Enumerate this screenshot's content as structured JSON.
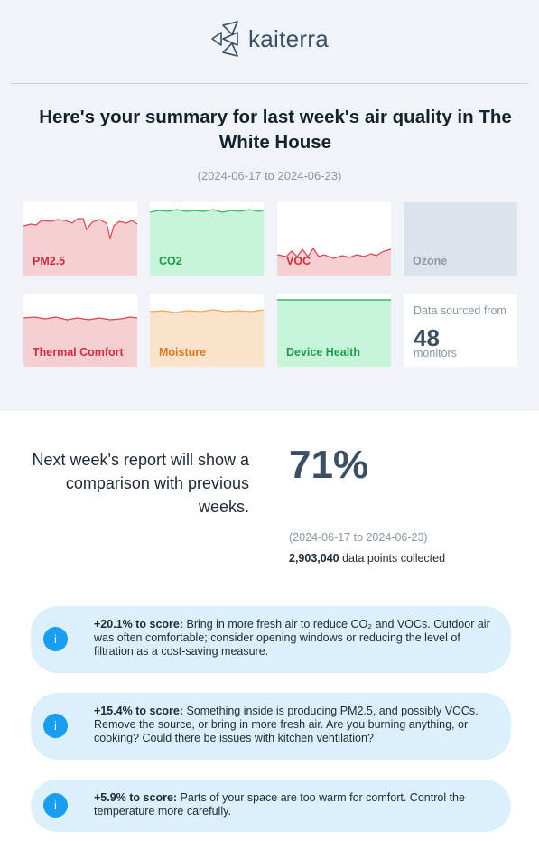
{
  "brand": {
    "name": "kaiterra"
  },
  "header": {
    "title": "Here's your summary for last week's air quality in The White House",
    "date_range": "(2024-06-17 to 2024-06-23)"
  },
  "tiles": [
    {
      "label": "PM2.5",
      "theme": "red",
      "line_color": "#d9434f"
    },
    {
      "label": "CO2",
      "theme": "green",
      "line_color": "#34b865"
    },
    {
      "label": "VOC",
      "theme": "red",
      "line_color": "#d9434f"
    },
    {
      "label": "Ozone",
      "theme": "gray",
      "line_color": ""
    },
    {
      "label": "Thermal Comfort",
      "theme": "red",
      "line_color": "#d9434f"
    },
    {
      "label": "Moisture",
      "theme": "orange",
      "line_color": "#f0a654"
    },
    {
      "label": "Device Health",
      "theme": "green",
      "line_color": "#34b865"
    }
  ],
  "source": {
    "caption": "Data sourced from",
    "count": "48",
    "unit": "monitors"
  },
  "comparison": {
    "message": "Next week's report will show a comparison with previous weeks.",
    "score": "71%",
    "date_range": "(2024-06-17 to 2024-06-23)",
    "data_points": "2,903,040",
    "data_points_suffix": " data points collected"
  },
  "tips": [
    {
      "icon": "info-icon",
      "impact": "+20.1% to score:",
      "text": " Bring in more fresh air to reduce CO₂ and VOCs. Outdoor air was often comfortable; consider opening windows or reducing the level of filtration as a cost-saving measure."
    },
    {
      "icon": "info-icon",
      "impact": "+15.4% to score:",
      "text": " Something inside is producing PM2.5, and possibly VOCs. Remove the source, or bring in more fresh air. Are you burning anything, or cooking? Could there be issues with kitchen ventilation?"
    },
    {
      "icon": "info-icon",
      "impact": "+5.9% to score:",
      "text": " Parts of your space are too warm for comfort. Control the temperature more carefully."
    }
  ],
  "colors": {
    "accent": "#1a9ef0",
    "score": "#3b4e63"
  }
}
